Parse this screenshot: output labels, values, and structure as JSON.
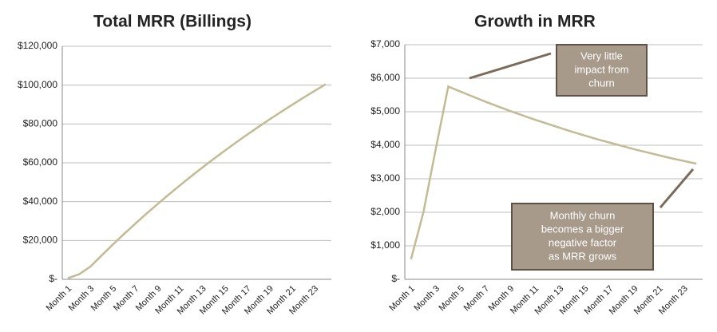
{
  "chart_data": [
    {
      "type": "line",
      "title": "Total MRR (Billings)",
      "categories": [
        "Month 1",
        null,
        "Month 3",
        null,
        "Month 5",
        null,
        "Month 7",
        null,
        "Month 9",
        null,
        "Month 11",
        null,
        "Month 13",
        null,
        "Month 15",
        null,
        "Month 17",
        null,
        "Month 19",
        null,
        "Month 21",
        null,
        "Month 23",
        null
      ],
      "series": [
        {
          "color": "#c2bb94",
          "values": [
            600,
            2600,
            6500,
            12250,
            17850,
            23300,
            28600,
            33760,
            38780,
            43670,
            48430,
            53070,
            57590,
            61990,
            66280,
            70460,
            74540,
            78520,
            82400,
            86190,
            89890,
            93500,
            97030,
            100480
          ]
        }
      ],
      "ylim": [
        0,
        120000
      ],
      "yticks": [
        {
          "value": 0,
          "label": "$-"
        },
        {
          "value": 20000,
          "label": "$20,000"
        },
        {
          "value": 40000,
          "label": "$40,000"
        },
        {
          "value": 60000,
          "label": "$60,000"
        },
        {
          "value": 80000,
          "label": "$80,000"
        },
        {
          "value": 100000,
          "label": "$100,000"
        },
        {
          "value": 120000,
          "label": "$120,000"
        }
      ],
      "grid": true
    },
    {
      "type": "line",
      "title": "Growth in MRR",
      "categories": [
        "Month 1",
        null,
        "Month 3",
        null,
        "Month 5",
        null,
        "Month 7",
        null,
        "Month 9",
        null,
        "Month 11",
        null,
        "Month 13",
        null,
        "Month 15",
        null,
        "Month 17",
        null,
        "Month 19",
        null,
        "Month 21",
        null,
        "Month 23",
        null
      ],
      "series": [
        {
          "color": "#c2bb94",
          "values": [
            600,
            2000,
            3900,
            5750,
            5600,
            5450,
            5300,
            5160,
            5020,
            4890,
            4760,
            4640,
            4520,
            4400,
            4290,
            4180,
            4080,
            3980,
            3880,
            3790,
            3700,
            3610,
            3530,
            3450
          ]
        }
      ],
      "ylim": [
        0,
        7000
      ],
      "yticks": [
        {
          "value": 0,
          "label": "$-"
        },
        {
          "value": 1000,
          "label": "$1,000"
        },
        {
          "value": 2000,
          "label": "$2,000"
        },
        {
          "value": 3000,
          "label": "$3,000"
        },
        {
          "value": 4000,
          "label": "$4,000"
        },
        {
          "value": 5000,
          "label": "$5,000"
        },
        {
          "value": 6000,
          "label": "$6,000"
        },
        {
          "value": 7000,
          "label": "$7,000"
        }
      ],
      "grid": true,
      "annotations": [
        {
          "text": [
            "Very little",
            "impact from",
            "churn"
          ]
        },
        {
          "text": [
            "Monthly churn",
            "becomes a bigger",
            "negative factor",
            "as MRR grows"
          ]
        }
      ]
    }
  ]
}
